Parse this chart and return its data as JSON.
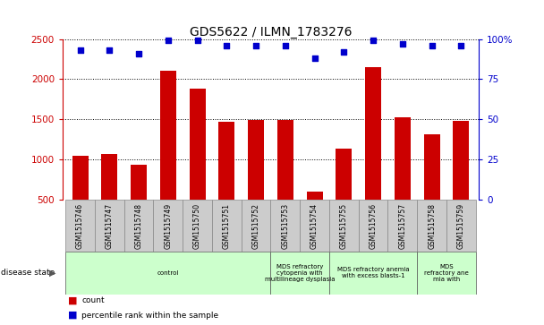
{
  "title": "GDS5622 / ILMN_1783276",
  "samples": [
    "GSM1515746",
    "GSM1515747",
    "GSM1515748",
    "GSM1515749",
    "GSM1515750",
    "GSM1515751",
    "GSM1515752",
    "GSM1515753",
    "GSM1515754",
    "GSM1515755",
    "GSM1515756",
    "GSM1515757",
    "GSM1515758",
    "GSM1515759"
  ],
  "counts": [
    1050,
    1070,
    940,
    2100,
    1880,
    1470,
    1490,
    1490,
    600,
    1140,
    2150,
    1530,
    1310,
    1480
  ],
  "percentile_ranks": [
    93,
    93,
    91,
    99,
    99,
    96,
    96,
    96,
    88,
    92,
    99,
    97,
    96,
    96
  ],
  "ylim_left": [
    500,
    2500
  ],
  "ylim_right": [
    0,
    100
  ],
  "yticks_left": [
    500,
    1000,
    1500,
    2000,
    2500
  ],
  "yticks_right": [
    0,
    25,
    50,
    75,
    100
  ],
  "bar_color": "#cc0000",
  "dot_color": "#0000cc",
  "disease_groups": [
    {
      "label": "control",
      "start": 0,
      "end": 7,
      "color": "#ccffcc"
    },
    {
      "label": "MDS refractory\ncytopenia with\nmultilineage dysplasia",
      "start": 7,
      "end": 9,
      "color": "#ccffcc"
    },
    {
      "label": "MDS refractory anemia\nwith excess blasts-1",
      "start": 9,
      "end": 12,
      "color": "#ccffcc"
    },
    {
      "label": "MDS\nrefractory ane\nmia with",
      "start": 12,
      "end": 14,
      "color": "#ccffcc"
    }
  ],
  "bar_width": 0.55,
  "title_fontsize": 10,
  "tick_fontsize": 7.5,
  "sample_fontsize": 5.5,
  "disease_fontsize": 5.0,
  "legend_fontsize": 6.5
}
